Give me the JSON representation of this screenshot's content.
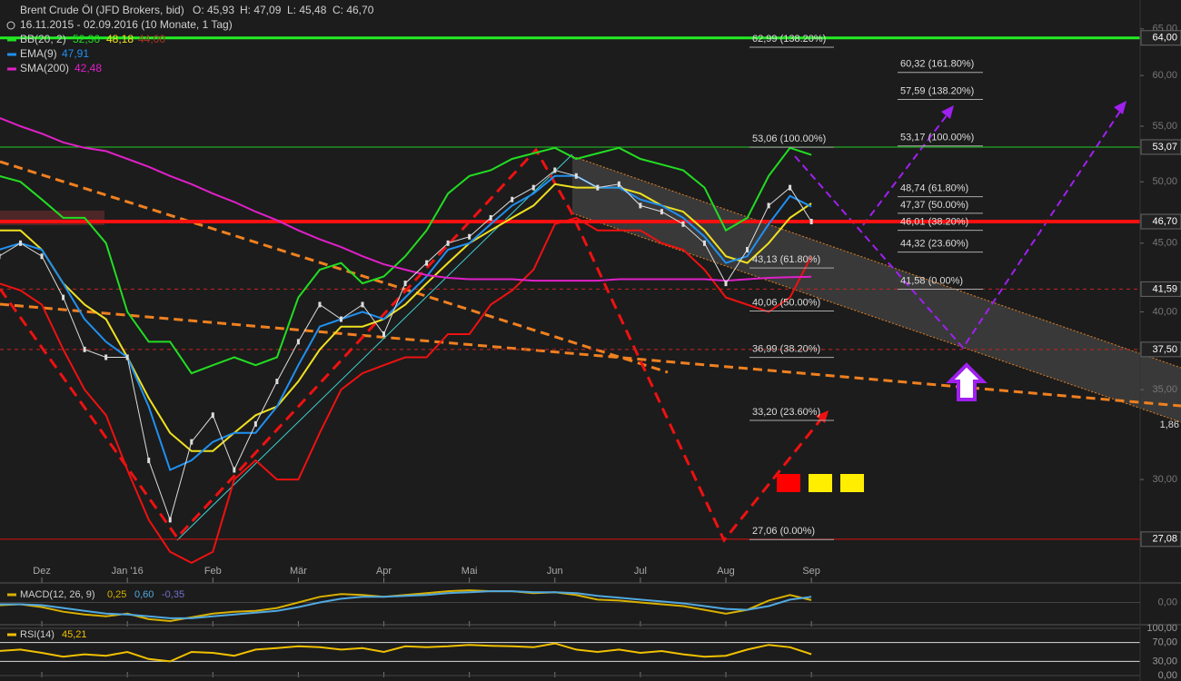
{
  "header": {
    "title": "Brent Crude Öl (JFD Brokers, bid)",
    "open": "O: 45,93",
    "high": "H: 47,09",
    "low": "L: 45,48",
    "close": "C: 46,70",
    "period": "16.11.2015 - 02.09.2016 (10 Monate, 1 Tag)"
  },
  "chart_data": {
    "type": "line",
    "log_scale": true,
    "categories": [
      "",
      "",
      "Dez",
      "",
      "",
      "",
      "Jan '16",
      "",
      "",
      "",
      "Feb",
      "",
      "",
      "",
      "Mär",
      "",
      "",
      "",
      "Apr",
      "",
      "",
      "",
      "Mai",
      "",
      "",
      "",
      "Jun",
      "",
      "",
      "",
      "Jul",
      "",
      "",
      "",
      "Aug",
      "",
      "",
      "",
      "Sep"
    ],
    "ylim": [
      25.2,
      68.3
    ],
    "yticks": [
      {
        "value": 30,
        "label": "30,00"
      },
      {
        "value": 35,
        "label": "35,00"
      },
      {
        "value": 40,
        "label": "40,00"
      },
      {
        "value": 45,
        "label": "45,00"
      },
      {
        "value": 50,
        "label": "50,00"
      },
      {
        "value": 55,
        "label": "55,00"
      },
      {
        "value": 60,
        "label": "60,00"
      },
      {
        "value": 65,
        "label": "65,00"
      }
    ],
    "close": {
      "color": "#dddddd",
      "values": [
        44,
        45,
        44,
        41,
        37.5,
        37,
        37,
        31,
        28,
        32,
        33.5,
        30.5,
        33,
        35.5,
        38,
        40.5,
        39.5,
        40.5,
        38.5,
        42,
        43.5,
        45,
        45.5,
        47,
        48.5,
        49.5,
        51,
        50.5,
        49.5,
        49.8,
        48,
        47.5,
        46.5,
        45,
        42,
        44.5,
        48,
        49.5,
        46.7
      ]
    },
    "bollinger": {
      "name": "BB(20, 2)",
      "color": "#22dd22",
      "middle_color": "#f0e020",
      "lower_color": "#ee1111",
      "readouts": [
        "52,36",
        "48,18",
        "44,00"
      ],
      "upper": [
        50.5,
        50,
        48.5,
        47,
        47,
        45,
        40,
        38,
        38,
        36,
        36.5,
        37,
        36.5,
        37,
        41,
        43,
        43.5,
        42,
        42.5,
        44,
        46,
        49,
        50.5,
        51,
        52,
        52.5,
        53,
        52,
        52.5,
        53,
        52,
        51.5,
        51,
        49.5,
        46,
        47,
        50.5,
        53,
        52.36
      ],
      "middle": [
        46,
        46,
        44.5,
        42,
        40.5,
        39.5,
        37,
        34.5,
        32.5,
        31.5,
        31.5,
        32.5,
        33.5,
        34,
        35.5,
        37.5,
        39,
        39,
        39.5,
        40.5,
        42,
        43.5,
        45,
        46,
        47,
        48,
        49.8,
        49.5,
        49.5,
        49.5,
        49,
        48,
        47.5,
        46,
        44,
        43.5,
        45,
        47,
        48.18
      ],
      "lower": [
        42,
        41.5,
        40.5,
        37.5,
        35,
        33.5,
        30.5,
        28,
        26.5,
        26,
        26.5,
        30,
        31,
        30,
        30,
        32.5,
        35,
        36,
        36.5,
        37,
        37,
        38.5,
        38.5,
        40.5,
        41.5,
        43,
        46.5,
        47,
        46,
        46,
        46,
        45,
        44.5,
        43,
        41,
        40.5,
        40,
        41,
        44
      ]
    },
    "series": [
      {
        "name": "EMA(9)",
        "color": "#2090f0",
        "readout": "47,91",
        "values": [
          44.5,
          45,
          44.5,
          42,
          39.5,
          38,
          37,
          34,
          30.5,
          31,
          32,
          32.5,
          32.5,
          34,
          36.5,
          39,
          39.5,
          40,
          39.5,
          41,
          42.5,
          44.5,
          45,
          46.5,
          48,
          49,
          50.5,
          50.5,
          49.5,
          49.5,
          48.5,
          48,
          47,
          45.5,
          43.5,
          44,
          46.5,
          48.8,
          47.91
        ]
      },
      {
        "name": "SMA(200)",
        "color": "#e020c8",
        "readout": "42,48",
        "values": [
          55.8,
          55,
          54.3,
          53.5,
          53,
          52.7,
          52,
          51.3,
          50.5,
          49.8,
          49,
          48.3,
          47.5,
          46.8,
          46,
          45.3,
          44.7,
          44,
          43.4,
          43,
          42.6,
          42.4,
          42.3,
          42.3,
          42.3,
          42.2,
          42.2,
          42.2,
          42.2,
          42.3,
          42.3,
          42.3,
          42.3,
          42.3,
          42.2,
          42.3,
          42.4,
          42.45,
          42.48
        ]
      }
    ],
    "levels": [
      {
        "value": 64,
        "label": "64,00",
        "color": "#22ee22",
        "width": 3,
        "dashed": false
      },
      {
        "value": 53.07,
        "label": "53,07",
        "color": "#22cc22",
        "width": 1,
        "dashed": false
      },
      {
        "value": 46.7,
        "label": "46,70",
        "color": "#ff1010",
        "width": 4,
        "dashed": false
      },
      {
        "value": 41.59,
        "label": "41,59",
        "color": "#cc2222",
        "width": 1,
        "dashed": true
      },
      {
        "value": 37.5,
        "label": "37,50",
        "color": "#cc2222",
        "width": 1,
        "dashed": true
      },
      {
        "value": 27.08,
        "label": "27,08",
        "color": "#dd1111",
        "width": 1,
        "dashed": false
      }
    ],
    "clipped_axis_label": "1,86",
    "fib_left": [
      {
        "value": 62.99,
        "label": "62,99 (138.20%)"
      },
      {
        "value": 53.06,
        "label": "53,06 (100.00%)"
      },
      {
        "value": 43.13,
        "label": "43,13 (61.80%)"
      },
      {
        "value": 40.06,
        "label": "40,06 (50.00%)"
      },
      {
        "value": 36.99,
        "label": "36,99 (38.20%)"
      },
      {
        "value": 33.2,
        "label": "33,20 (23.60%)"
      },
      {
        "value": 27.06,
        "label": "27,06 (0.00%)"
      }
    ],
    "fib_right": [
      {
        "value": 60.32,
        "label": "60,32 (161.80%)"
      },
      {
        "value": 57.59,
        "label": "57,59 (138.20%)"
      },
      {
        "value": 53.17,
        "label": "53,17 (100.00%)"
      },
      {
        "value": 48.74,
        "label": "48,74 (61.80%)"
      },
      {
        "value": 47.37,
        "label": "47,37 (50.00%)"
      },
      {
        "value": 46.01,
        "label": "46,01 (38.20%)"
      },
      {
        "value": 44.32,
        "label": "44,32 (23.60%)"
      },
      {
        "value": 41.58,
        "label": "41,58 (0.00%)"
      }
    ]
  },
  "macd": {
    "type": "line",
    "name": "MACD(12, 26, 9)",
    "readouts": [
      "0,25",
      "0,60",
      "-0,35"
    ],
    "ylim": [
      -2.2,
      1.8
    ],
    "yticks": [
      {
        "value": 0,
        "label": "0,00"
      }
    ],
    "series": [
      {
        "color": "#d8b000",
        "values": [
          -0.3,
          -0.2,
          -0.5,
          -1,
          -1.3,
          -1.5,
          -1.2,
          -1.8,
          -2,
          -1.6,
          -1.2,
          -1,
          -0.9,
          -0.6,
          0,
          0.6,
          0.9,
          0.8,
          0.6,
          0.8,
          1,
          1.2,
          1.3,
          1.2,
          1.2,
          1,
          1.1,
          0.8,
          0.3,
          0.2,
          0,
          -0.2,
          -0.4,
          -0.8,
          -1.2,
          -0.8,
          0.2,
          0.8,
          0.25
        ]
      },
      {
        "color": "#50a8e0",
        "values": [
          -0.2,
          -0.2,
          -0.3,
          -0.6,
          -0.9,
          -1.2,
          -1.3,
          -1.5,
          -1.7,
          -1.7,
          -1.5,
          -1.3,
          -1.1,
          -0.9,
          -0.5,
          0,
          0.4,
          0.6,
          0.6,
          0.7,
          0.8,
          1,
          1.1,
          1.2,
          1.2,
          1.1,
          1.1,
          1,
          0.7,
          0.5,
          0.3,
          0.1,
          -0.1,
          -0.4,
          -0.7,
          -0.8,
          -0.4,
          0.3,
          0.6
        ]
      }
    ]
  },
  "rsi": {
    "type": "line",
    "name": "RSI(14)",
    "readout": "45,21",
    "color": "#f0c000",
    "ylim": [
      0,
      100
    ],
    "yticks": [
      {
        "value": 0,
        "label": "0,00"
      },
      {
        "value": 30,
        "label": "30,00"
      },
      {
        "value": 70,
        "label": "70,00"
      },
      {
        "value": 100,
        "label": "100,00"
      }
    ],
    "values": [
      52,
      55,
      48,
      40,
      45,
      42,
      50,
      35,
      30,
      50,
      48,
      42,
      55,
      58,
      62,
      60,
      55,
      58,
      50,
      62,
      60,
      62,
      65,
      63,
      62,
      60,
      68,
      55,
      50,
      55,
      48,
      52,
      45,
      40,
      42,
      55,
      65,
      60,
      45.21
    ]
  }
}
